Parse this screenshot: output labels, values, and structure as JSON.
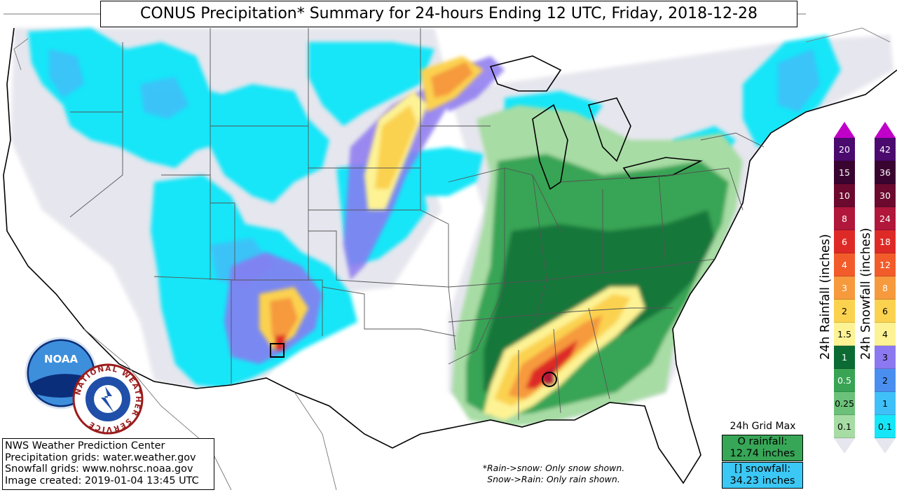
{
  "title": "CONUS Precipitation* Summary for 24-hours Ending 12 UTC, Friday, 2018-12-28",
  "credits": [
    "NWS Weather Prediction Center",
    "Precipitation grids: water.weather.gov",
    "Snowfall grids: www.nohrsc.noaa.gov",
    "Image created: 2019-01-04 13:45 UTC"
  ],
  "note": {
    "line1": "*Rain->snow: Only snow shown.",
    "line2": "Snow->Rain: Only rain shown."
  },
  "grid_max": {
    "title": "24h Grid Max",
    "rain_line1": "O rainfall:",
    "rain_line2": "12.74 inches",
    "snow_line1": "[] snowfall:",
    "snow_line2": "34.23 inches"
  },
  "rain_legend": {
    "label": "24h Rainfall (inches)",
    "levels": [
      "20",
      "15",
      "10",
      "8",
      "6",
      "4",
      "3",
      "2",
      "1.5",
      "1",
      "0.5",
      "0.25",
      "0.1"
    ],
    "colors": [
      "#4b0a6e",
      "#3a0430",
      "#6b0a2e",
      "#b0173a",
      "#de2a27",
      "#f25c2a",
      "#f69a3d",
      "#fbd24f",
      "#fdf394",
      "#0b6b33",
      "#38a454",
      "#6cc17a",
      "#a7dca4"
    ]
  },
  "snow_legend": {
    "label": "24h Snowfall (inches)",
    "levels": [
      "42",
      "36",
      "30",
      "24",
      "18",
      "12",
      "8",
      "6",
      "4",
      "3",
      "2",
      "1",
      "0.1"
    ],
    "colors": [
      "#4b0a6e",
      "#3a0430",
      "#6b0a2e",
      "#b0173a",
      "#de2a27",
      "#f25c2a",
      "#f69a3d",
      "#fbd24f",
      "#fdf394",
      "#8c78f0",
      "#4a8ff0",
      "#3fc0f8",
      "#17e6f8"
    ]
  },
  "logos": {
    "noaa": "NOAA",
    "nws": "NATIONAL WEATHER SERVICE"
  },
  "colors": {
    "trace": "#e6e6ee",
    "snow_light": "#17e6f8",
    "snow_mid": "#3fc0f8",
    "snow_heavy": "#8c78f0",
    "rain_light": "#a7dca4",
    "rain_mid": "#38a454",
    "rain_heavy": "#0b6b33",
    "rain_yellow": "#fbd24f",
    "rain_orange": "#f69a3d",
    "rain_red": "#de2a27"
  }
}
